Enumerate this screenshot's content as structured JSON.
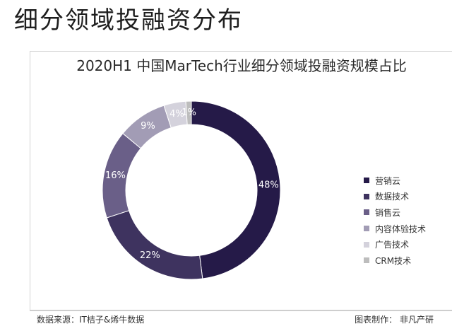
{
  "page": {
    "heading": "细分领域投融资分布"
  },
  "chart_data": {
    "type": "pie",
    "title": "2020H1 中国MarTech行业细分领域投融资规模占比",
    "categories": [
      "营销云",
      "数据技术",
      "销售云",
      "内容体验技术",
      "广告技术",
      "CRM技术"
    ],
    "values": [
      48,
      22,
      16,
      9,
      4,
      1
    ],
    "labels": [
      "48%",
      "22%",
      "16%",
      "9%",
      "4%",
      "1%"
    ],
    "colors": [
      "#251a48",
      "#3e335f",
      "#6a5f88",
      "#a29cb5",
      "#d4d2dc",
      "#bdbdbd"
    ],
    "label_colors": [
      "#ffffff",
      "#ffffff",
      "#ffffff",
      "#ffffff",
      "#ffffff",
      "#ffffff"
    ],
    "legend_position": "right"
  },
  "footer": {
    "source": "数据来源：IT桔子&烯牛数据",
    "credit": "图表制作： 非凡产研"
  }
}
